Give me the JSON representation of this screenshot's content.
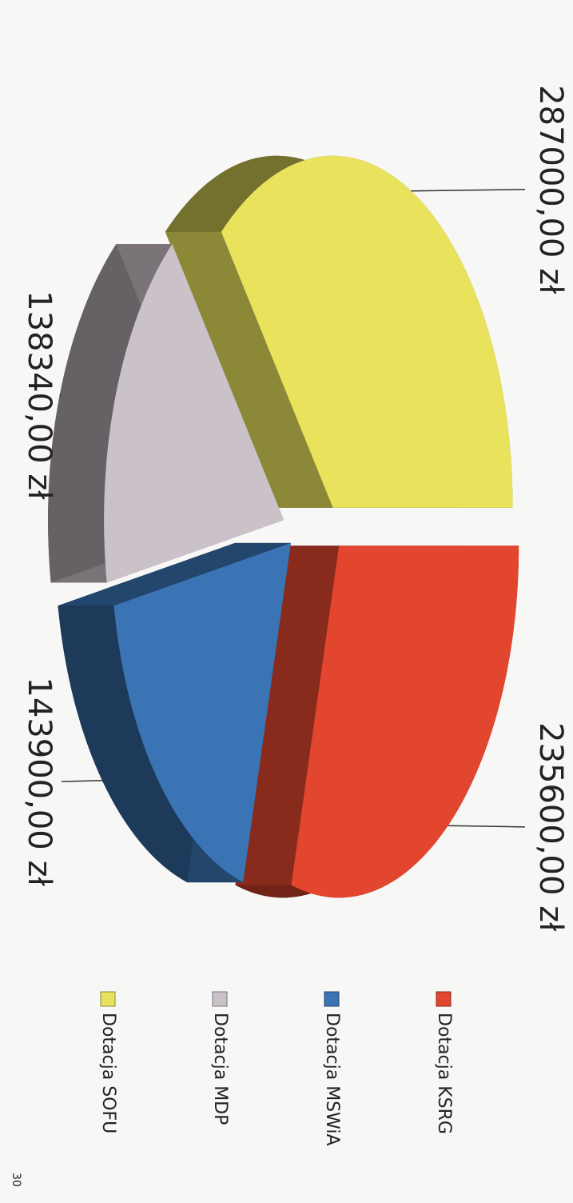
{
  "chart_data": {
    "type": "pie",
    "categories": [
      "Dotacja KSRG",
      "Dotacja MSWiA",
      "Dotacja MDP",
      "Dotacja SOFU"
    ],
    "values": [
      235600,
      143900,
      138340,
      287000
    ],
    "value_labels": [
      "235600,00 zł",
      "143900,00 zł",
      "138340,00 zł",
      "287000,00 zł"
    ],
    "colors": [
      "#e2462f",
      "#3b74b5",
      "#cbc2c9",
      "#e8e25c"
    ],
    "legend": "right"
  },
  "page_number": "30"
}
